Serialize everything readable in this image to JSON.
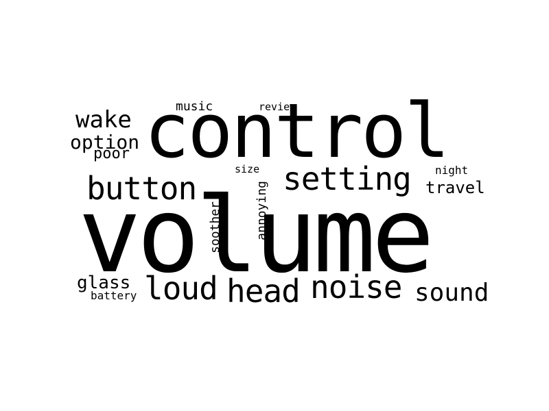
{
  "colors": {
    "background": "#ffffff",
    "text": "#000000"
  },
  "words": {
    "volume": "volume",
    "control": "control",
    "setting": "setting",
    "button": "button",
    "noise": "noise",
    "head": "head",
    "loud": "loud",
    "sound": "sound",
    "wake": "wake",
    "option": "option",
    "poor": "poor",
    "glass": "glass",
    "battery": "battery",
    "travel": "travel",
    "night": "night",
    "music": "music",
    "review": "review",
    "size": "size",
    "annoying": "annoying",
    "soother": "soother"
  }
}
